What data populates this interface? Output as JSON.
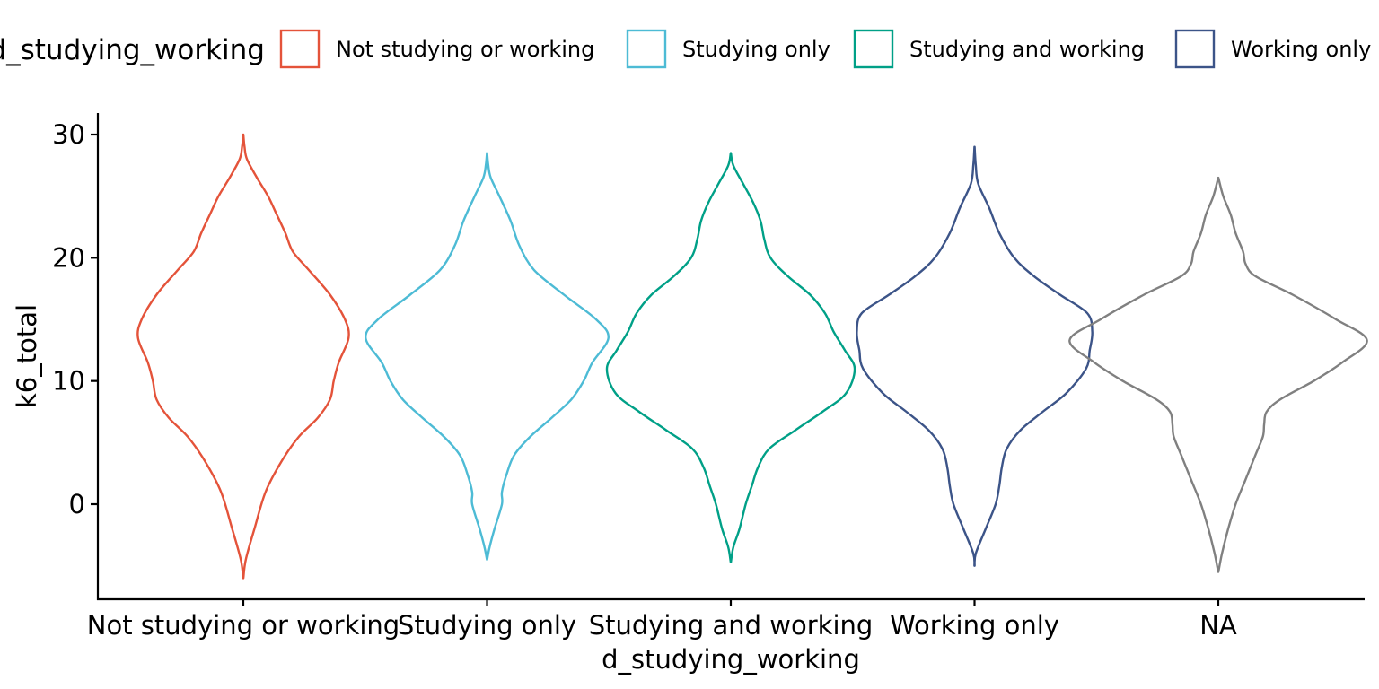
{
  "chart_data": {
    "type": "violin",
    "xlabel": "d_studying_working",
    "ylabel": "k6_total",
    "ylim": [
      -7.7,
      31.6
    ],
    "yticks": [
      0,
      10,
      20,
      30
    ],
    "grid": false,
    "legend": {
      "title": "d_studying_working",
      "position": "top",
      "entries": [
        {
          "label": "Not studying or working",
          "color": "#E4533A"
        },
        {
          "label": "Studying only",
          "color": "#4DBBD5"
        },
        {
          "label": "Studying and working",
          "color": "#00A087"
        },
        {
          "label": "Working only",
          "color": "#3C5488"
        }
      ]
    },
    "categories": [
      "Not studying or working",
      "Studying only",
      "Studying and working",
      "Working only",
      "NA"
    ],
    "series": [
      {
        "category": "Not studying or working",
        "color": "#E4533A",
        "profile": [
          [
            -6,
            0.001
          ],
          [
            -4.5,
            0.02
          ],
          [
            -2,
            0.09
          ],
          [
            1,
            0.18
          ],
          [
            3.5,
            0.31
          ],
          [
            5.5,
            0.45
          ],
          [
            7,
            0.6
          ],
          [
            8.5,
            0.7
          ],
          [
            10,
            0.73
          ],
          [
            11.5,
            0.77
          ],
          [
            13.5,
            0.85
          ],
          [
            15,
            0.82
          ],
          [
            17,
            0.7
          ],
          [
            19,
            0.53
          ],
          [
            20.5,
            0.4
          ],
          [
            22,
            0.34
          ],
          [
            23.5,
            0.27
          ],
          [
            25,
            0.2
          ],
          [
            26.5,
            0.11
          ],
          [
            28,
            0.03
          ],
          [
            29,
            0.01
          ],
          [
            30,
            0.001
          ]
        ]
      },
      {
        "category": "Studying only",
        "color": "#4DBBD5",
        "profile": [
          [
            -4.5,
            0.001
          ],
          [
            -3.5,
            0.02
          ],
          [
            -2,
            0.06
          ],
          [
            0,
            0.12
          ],
          [
            1,
            0.12
          ],
          [
            2.5,
            0.16
          ],
          [
            4,
            0.22
          ],
          [
            5.5,
            0.35
          ],
          [
            7,
            0.52
          ],
          [
            8.5,
            0.68
          ],
          [
            10,
            0.78
          ],
          [
            11.5,
            0.85
          ],
          [
            13.5,
            0.98
          ],
          [
            15,
            0.88
          ],
          [
            17,
            0.62
          ],
          [
            19,
            0.38
          ],
          [
            21,
            0.26
          ],
          [
            23,
            0.19
          ],
          [
            25,
            0.1
          ],
          [
            26.5,
            0.03
          ],
          [
            27.5,
            0.01
          ],
          [
            28.5,
            0.001
          ]
        ]
      },
      {
        "category": "Studying and working",
        "color": "#00A087",
        "profile": [
          [
            -4.7,
            0.001
          ],
          [
            -3.5,
            0.02
          ],
          [
            -2,
            0.07
          ],
          [
            0,
            0.12
          ],
          [
            1.5,
            0.17
          ],
          [
            3,
            0.22
          ],
          [
            4.5,
            0.31
          ],
          [
            6,
            0.52
          ],
          [
            7.5,
            0.74
          ],
          [
            9,
            0.93
          ],
          [
            11,
            1.0
          ],
          [
            12.5,
            0.92
          ],
          [
            14,
            0.83
          ],
          [
            15.5,
            0.76
          ],
          [
            17,
            0.64
          ],
          [
            18.5,
            0.46
          ],
          [
            20,
            0.32
          ],
          [
            21.5,
            0.27
          ],
          [
            23,
            0.24
          ],
          [
            24.5,
            0.18
          ],
          [
            26,
            0.1
          ],
          [
            27.5,
            0.02
          ],
          [
            28.5,
            0.001
          ]
        ]
      },
      {
        "category": "Working only",
        "color": "#3C5488",
        "profile": [
          [
            -5,
            0.001
          ],
          [
            -4,
            0.01
          ],
          [
            -2,
            0.09
          ],
          [
            0,
            0.17
          ],
          [
            1.5,
            0.2
          ],
          [
            3,
            0.22
          ],
          [
            4.5,
            0.26
          ],
          [
            6,
            0.37
          ],
          [
            7.5,
            0.55
          ],
          [
            9,
            0.74
          ],
          [
            11,
            0.9
          ],
          [
            12.5,
            0.93
          ],
          [
            14,
            0.95
          ],
          [
            15.5,
            0.91
          ],
          [
            17,
            0.69
          ],
          [
            18.5,
            0.48
          ],
          [
            20,
            0.32
          ],
          [
            22,
            0.2
          ],
          [
            24,
            0.12
          ],
          [
            26,
            0.03
          ],
          [
            27.5,
            0.01
          ],
          [
            29,
            0.001
          ]
        ]
      },
      {
        "category": "NA",
        "color": "#808080",
        "profile": [
          [
            -5.5,
            0.001
          ],
          [
            -4,
            0.03
          ],
          [
            -2,
            0.08
          ],
          [
            0,
            0.14
          ],
          [
            2,
            0.22
          ],
          [
            4,
            0.3
          ],
          [
            5.5,
            0.36
          ],
          [
            6.5,
            0.37
          ],
          [
            7.5,
            0.39
          ],
          [
            8.5,
            0.5
          ],
          [
            10,
            0.77
          ],
          [
            11.5,
            1.0
          ],
          [
            13.3,
            1.2
          ],
          [
            15,
            0.95
          ],
          [
            17,
            0.6
          ],
          [
            18.5,
            0.3
          ],
          [
            19.5,
            0.22
          ],
          [
            20.5,
            0.2
          ],
          [
            22,
            0.14
          ],
          [
            23.5,
            0.1
          ],
          [
            25,
            0.04
          ],
          [
            26.5,
            0.001
          ]
        ]
      }
    ]
  }
}
